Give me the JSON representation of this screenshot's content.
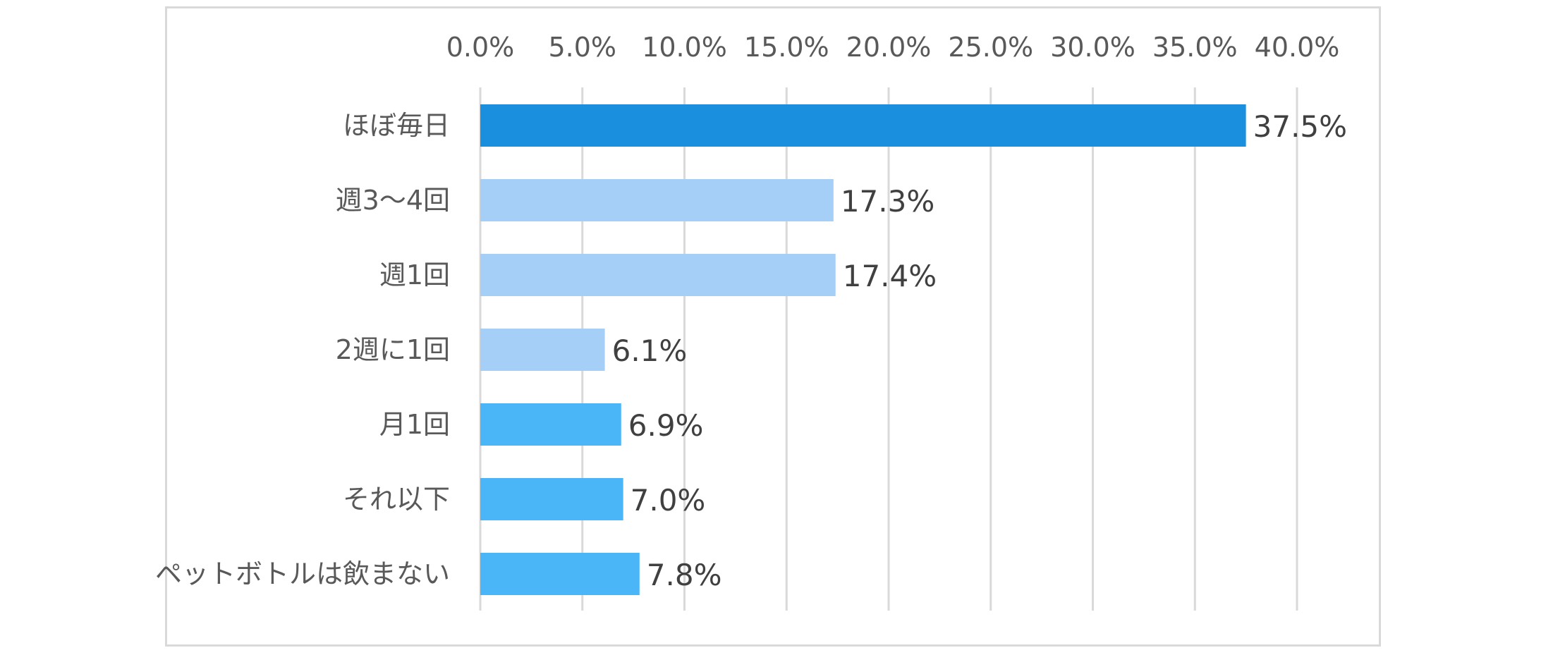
{
  "chart_data": {
    "type": "bar",
    "orientation": "horizontal",
    "title": "",
    "xlabel": "",
    "ylabel": "",
    "xlim": [
      0,
      40
    ],
    "tick_step": 5,
    "x_tick_labels": [
      "0.0%",
      "5.0%",
      "10.0%",
      "15.0%",
      "20.0%",
      "25.0%",
      "30.0%",
      "35.0%",
      "40.0%"
    ],
    "x_axis_position": "top",
    "grid": true,
    "legend": "none",
    "categories": [
      "ほぼ毎日",
      "週3～4回",
      "週1回",
      "2週に1回",
      "月1回",
      "それ以下",
      "ペットボトルは飲まない"
    ],
    "values": [
      37.5,
      17.3,
      17.4,
      6.1,
      6.9,
      7.0,
      7.8
    ],
    "value_labels": [
      "37.5%",
      "17.3%",
      "17.4%",
      "6.1%",
      "6.9%",
      "7.0%",
      "7.8%"
    ],
    "bar_colors": [
      "#1a8fdd",
      "#a6cff8",
      "#a6cff8",
      "#a6cff8",
      "#4ab6f8",
      "#4ab6f8",
      "#4ab6f8"
    ]
  },
  "colors": {
    "gridline": "#d9d9d9",
    "frame_border": "#d9d9d9",
    "tick_text": "#595959",
    "data_label_text": "#404040"
  }
}
